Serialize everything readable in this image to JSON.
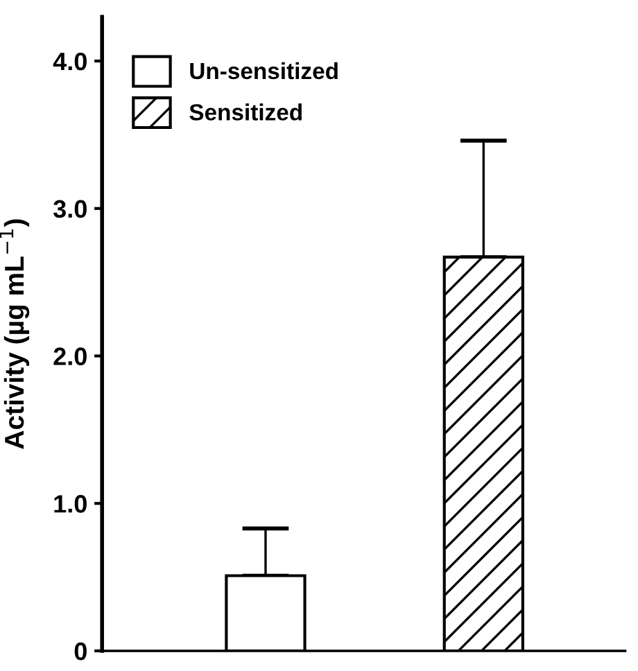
{
  "chart_data": {
    "type": "bar",
    "ylabel": "Activity (µg mL$^{−1}$)",
    "categories": [
      null,
      null
    ],
    "series": [
      {
        "name": "Un-sensitized",
        "color": "#ffffff",
        "values": [
          0.51,
          null
        ],
        "errors": [
          [
            0.51,
            0.83
          ],
          null
        ]
      },
      {
        "name": "Sensitized",
        "color": "#000000",
        "values": [
          null,
          2.67
        ],
        "errors": [
          null,
          [
            2.67,
            3.46
          ]
        ]
      }
    ],
    "ylim": [
      0,
      4.3
    ],
    "yticks": [
      0,
      {
        "value": 1,
        "label": "1.0"
      },
      {
        "value": 2,
        "label": "2.0"
      },
      {
        "value": 3,
        "label": "3.0"
      },
      {
        "value": 4,
        "label": "4.0"
      }
    ],
    "grid": false,
    "legend": "top left"
  }
}
